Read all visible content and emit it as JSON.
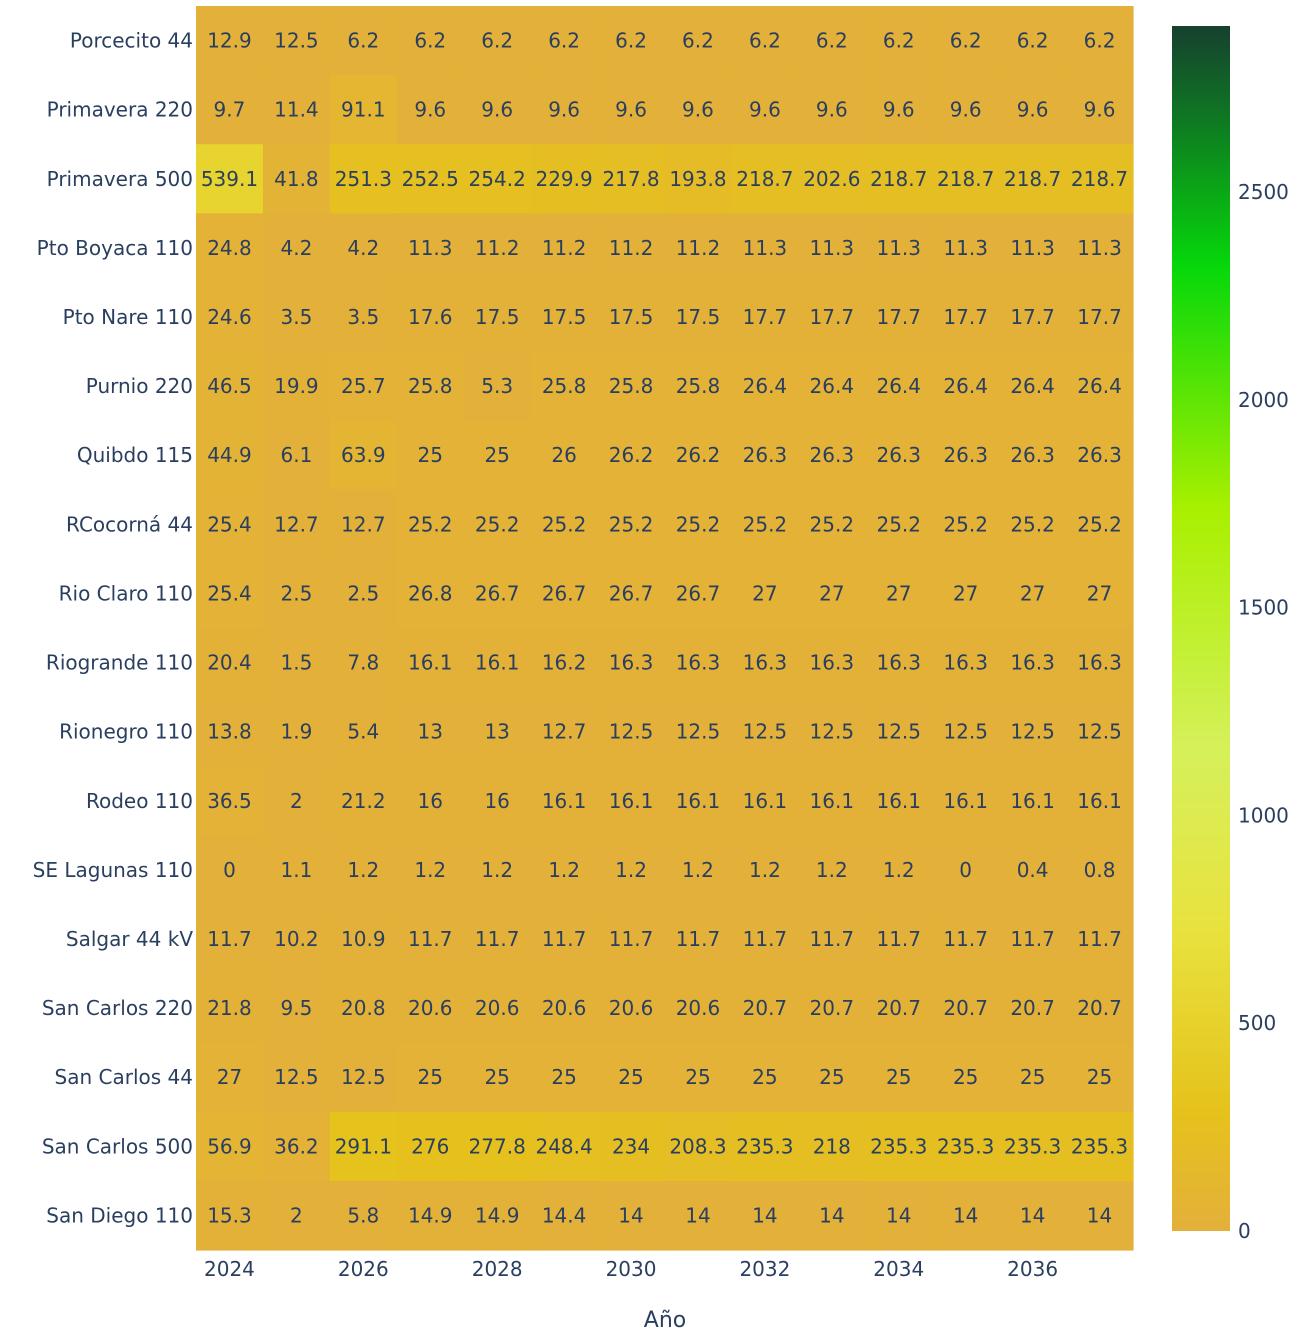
{
  "chart_data": {
    "type": "heatmap",
    "xlabel": "Año",
    "ylabel": "",
    "x": [
      2024,
      2025,
      2026,
      2027,
      2028,
      2029,
      2030,
      2031,
      2032,
      2033,
      2034,
      2035,
      2036,
      2037
    ],
    "x_tick_labels": [
      "2024",
      "2026",
      "2028",
      "2030",
      "2032",
      "2034",
      "2036"
    ],
    "y": [
      "Porcecito 44",
      "Primavera 220",
      "Primavera 500",
      "Pto Boyaca 110",
      "Pto Nare 110",
      "Purnio 220",
      "Quibdo 115",
      "RCocorná 44",
      "Rio Claro 110",
      "Riogrande 110",
      "Rionegro 110",
      "Rodeo 110",
      "SE Lagunas 110",
      "Salgar 44 kV",
      "San Carlos 220",
      "San Carlos 44",
      "San Carlos 500",
      "San Diego 110"
    ],
    "z": [
      [
        12.9,
        12.5,
        6.2,
        6.2,
        6.2,
        6.2,
        6.2,
        6.2,
        6.2,
        6.2,
        6.2,
        6.2,
        6.2,
        6.2
      ],
      [
        9.7,
        11.4,
        91.1,
        9.6,
        9.6,
        9.6,
        9.6,
        9.6,
        9.6,
        9.6,
        9.6,
        9.6,
        9.6,
        9.6
      ],
      [
        539.1,
        41.8,
        251.3,
        252.5,
        254.2,
        229.9,
        217.8,
        193.8,
        218.7,
        202.6,
        218.7,
        218.7,
        218.7,
        218.7
      ],
      [
        24.8,
        4.2,
        4.2,
        11.3,
        11.2,
        11.2,
        11.2,
        11.2,
        11.3,
        11.3,
        11.3,
        11.3,
        11.3,
        11.3
      ],
      [
        24.6,
        3.5,
        3.5,
        17.6,
        17.5,
        17.5,
        17.5,
        17.5,
        17.7,
        17.7,
        17.7,
        17.7,
        17.7,
        17.7
      ],
      [
        46.5,
        19.9,
        25.7,
        25.8,
        5.3,
        25.8,
        25.8,
        25.8,
        26.4,
        26.4,
        26.4,
        26.4,
        26.4,
        26.4
      ],
      [
        44.9,
        6.1,
        63.9,
        25,
        25,
        26,
        26.2,
        26.2,
        26.3,
        26.3,
        26.3,
        26.3,
        26.3,
        26.3
      ],
      [
        25.4,
        12.7,
        12.7,
        25.2,
        25.2,
        25.2,
        25.2,
        25.2,
        25.2,
        25.2,
        25.2,
        25.2,
        25.2,
        25.2
      ],
      [
        25.4,
        2.5,
        2.5,
        26.8,
        26.7,
        26.7,
        26.7,
        26.7,
        27,
        27,
        27,
        27,
        27,
        27
      ],
      [
        20.4,
        1.5,
        7.8,
        16.1,
        16.1,
        16.2,
        16.3,
        16.3,
        16.3,
        16.3,
        16.3,
        16.3,
        16.3,
        16.3
      ],
      [
        13.8,
        1.9,
        5.4,
        13,
        13,
        12.7,
        12.5,
        12.5,
        12.5,
        12.5,
        12.5,
        12.5,
        12.5,
        12.5
      ],
      [
        36.5,
        2,
        21.2,
        16,
        16,
        16.1,
        16.1,
        16.1,
        16.1,
        16.1,
        16.1,
        16.1,
        16.1,
        16.1
      ],
      [
        0,
        1.1,
        1.2,
        1.2,
        1.2,
        1.2,
        1.2,
        1.2,
        1.2,
        1.2,
        1.2,
        0,
        0.4,
        0.8
      ],
      [
        11.7,
        10.2,
        10.9,
        11.7,
        11.7,
        11.7,
        11.7,
        11.7,
        11.7,
        11.7,
        11.7,
        11.7,
        11.7,
        11.7
      ],
      [
        21.8,
        9.5,
        20.8,
        20.6,
        20.6,
        20.6,
        20.6,
        20.6,
        20.7,
        20.7,
        20.7,
        20.7,
        20.7,
        20.7
      ],
      [
        27,
        12.5,
        12.5,
        25,
        25,
        25,
        25,
        25,
        25,
        25,
        25,
        25,
        25,
        25
      ],
      [
        56.9,
        36.2,
        291.1,
        276,
        277.8,
        248.4,
        234,
        208.3,
        235.3,
        218,
        235.3,
        235.3,
        235.3,
        235.3
      ],
      [
        15.3,
        2,
        5.8,
        14.9,
        14.9,
        14.4,
        14,
        14,
        14,
        14,
        14,
        14,
        14,
        14
      ]
    ],
    "zlim": [
      0,
      2900
    ],
    "colorbar": {
      "tick_values": [
        0,
        500,
        1000,
        1500,
        2000,
        2500
      ],
      "tick_labels": [
        "0",
        "500",
        "1000",
        "1500",
        "2000",
        "2500"
      ]
    },
    "colorscale": [
      [
        0.0,
        "#e3b03a"
      ],
      [
        0.1,
        "#e6c21c"
      ],
      [
        0.25,
        "#e8e23e"
      ],
      [
        0.4,
        "#d6f05a"
      ],
      [
        0.6,
        "#a8f000"
      ],
      [
        0.8,
        "#06d80a"
      ],
      [
        0.92,
        "#0e7a22"
      ],
      [
        1.0,
        "#17402f"
      ]
    ],
    "text_color": "#2a3f5f",
    "grid": false,
    "legend": "colorbar-right"
  }
}
